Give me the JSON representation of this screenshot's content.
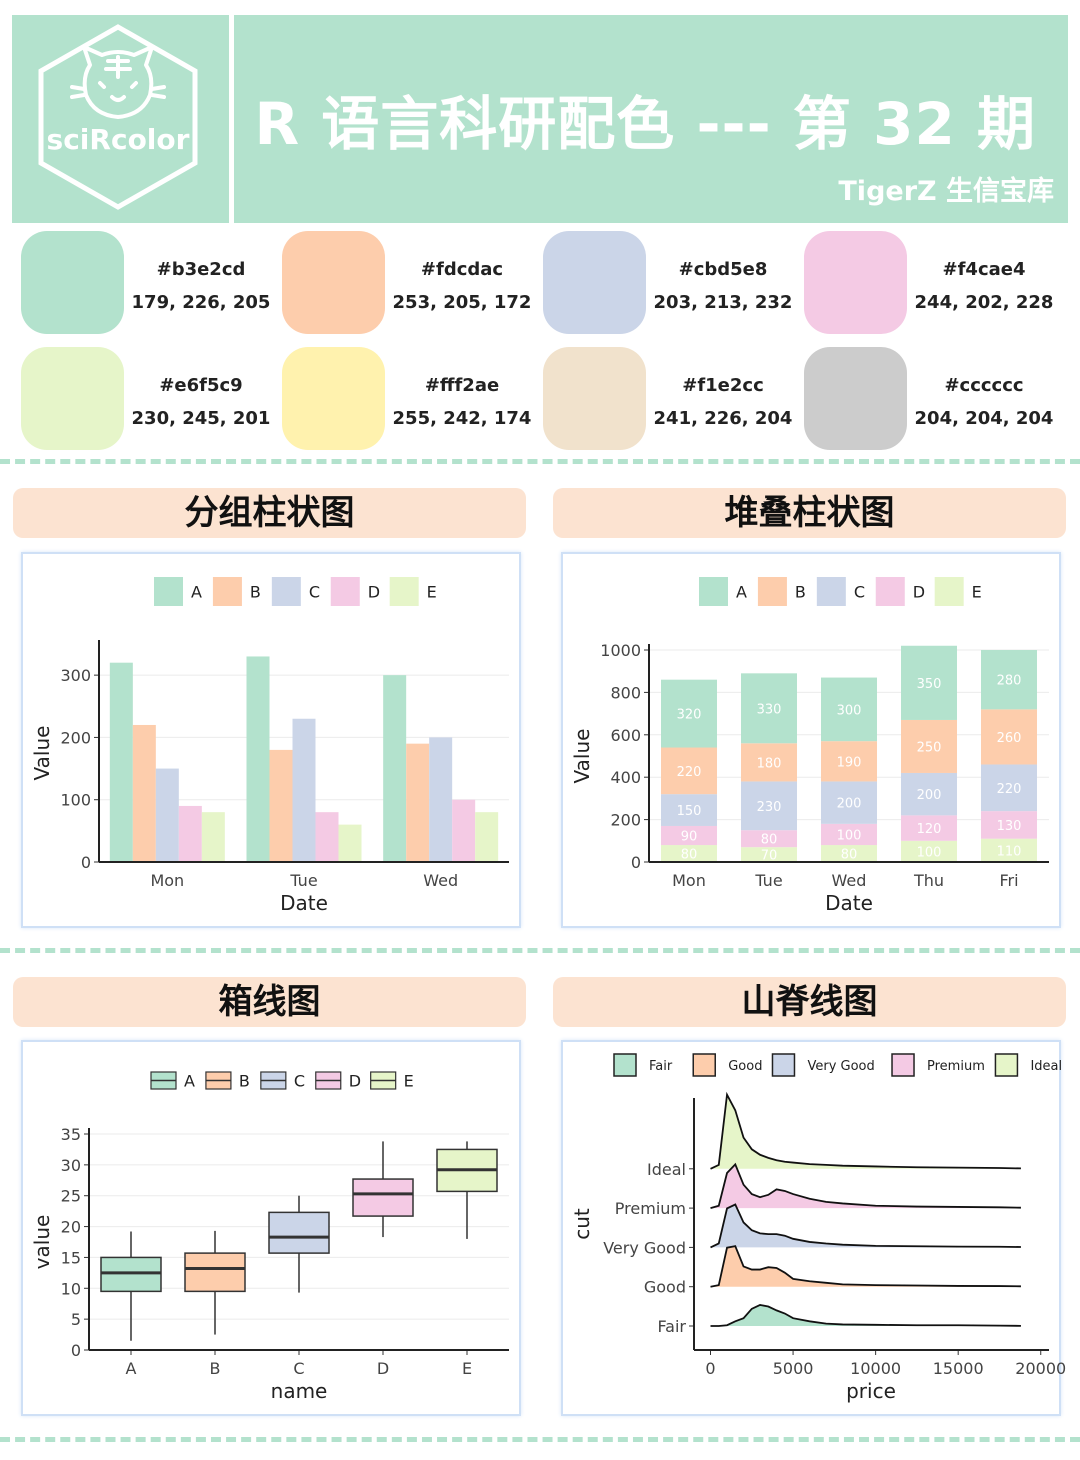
{
  "header": {
    "logo_text": "sciRcolor",
    "title": "R 语言科研配色 --- 第 32 期",
    "subtitle": "TigerZ 生信宝库"
  },
  "palette": [
    {
      "hex": "#b3e2cd",
      "rgb": "179, 226, 205"
    },
    {
      "hex": "#fdcdac",
      "rgb": "253, 205, 172"
    },
    {
      "hex": "#cbd5e8",
      "rgb": "203, 213, 232"
    },
    {
      "hex": "#f4cae4",
      "rgb": "244, 202, 228"
    },
    {
      "hex": "#e6f5c9",
      "rgb": "230, 245, 201"
    },
    {
      "hex": "#fff2ae",
      "rgb": "255, 242, 174"
    },
    {
      "hex": "#f1e2cc",
      "rgb": "241, 226, 204"
    },
    {
      "hex": "#cccccc",
      "rgb": "204, 204, 204"
    }
  ],
  "panels": {
    "grouped_bar_title": "分组柱状图",
    "stacked_bar_title": "堆叠柱状图",
    "boxplot_title": "箱线图",
    "ridgeline_title": "山脊线图"
  },
  "chart_data": [
    {
      "type": "bar",
      "subtype": "grouped",
      "categories": [
        "Mon",
        "Tue",
        "Wed"
      ],
      "series": [
        {
          "name": "A",
          "values": [
            320,
            330,
            300
          ]
        },
        {
          "name": "B",
          "values": [
            220,
            180,
            190
          ]
        },
        {
          "name": "C",
          "values": [
            150,
            230,
            200
          ]
        },
        {
          "name": "D",
          "values": [
            90,
            80,
            100
          ]
        },
        {
          "name": "E",
          "values": [
            80,
            60,
            80
          ]
        }
      ],
      "colors": [
        "#b3e2cd",
        "#fdcdac",
        "#cbd5e8",
        "#f4cae4",
        "#e6f5c9"
      ],
      "xlabel": "Date",
      "ylabel": "Value",
      "ylim": [
        0,
        350
      ],
      "yticks": [
        0,
        100,
        200,
        300
      ],
      "legend": "top",
      "grid": true
    },
    {
      "type": "bar",
      "subtype": "stacked",
      "categories": [
        "Mon",
        "Tue",
        "Wed",
        "Thu",
        "Fri"
      ],
      "series": [
        {
          "name": "A",
          "values": [
            320,
            330,
            300,
            350,
            280
          ]
        },
        {
          "name": "B",
          "values": [
            220,
            180,
            190,
            250,
            260
          ]
        },
        {
          "name": "C",
          "values": [
            150,
            230,
            200,
            200,
            220
          ]
        },
        {
          "name": "D",
          "values": [
            90,
            80,
            100,
            120,
            130
          ]
        },
        {
          "name": "E",
          "values": [
            80,
            70,
            80,
            100,
            110
          ]
        }
      ],
      "colors": [
        "#b3e2cd",
        "#fdcdac",
        "#cbd5e8",
        "#f4cae4",
        "#e6f5c9"
      ],
      "xlabel": "Date",
      "ylabel": "Value",
      "ylim": [
        0,
        1000
      ],
      "yticks": [
        0,
        200,
        400,
        600,
        800,
        1000
      ],
      "legend": "top",
      "grid": true,
      "data_labels": true
    },
    {
      "type": "boxplot",
      "categories": [
        "A",
        "B",
        "C",
        "D",
        "E"
      ],
      "boxes": [
        {
          "name": "A",
          "min": 1.5,
          "q1": 9.5,
          "median": 12.5,
          "q3": 15,
          "max": 19.2
        },
        {
          "name": "B",
          "min": 2.5,
          "q1": 9.5,
          "median": 13.2,
          "q3": 15.7,
          "max": 19.3
        },
        {
          "name": "C",
          "min": 9.3,
          "q1": 15.7,
          "median": 18.3,
          "q3": 22.3,
          "max": 25
        },
        {
          "name": "D",
          "min": 18.3,
          "q1": 21.7,
          "median": 25.3,
          "q3": 27.7,
          "max": 33.8
        },
        {
          "name": "E",
          "min": 18,
          "q1": 25.7,
          "median": 29.2,
          "q3": 32.5,
          "max": 33.8
        }
      ],
      "colors": [
        "#b3e2cd",
        "#fdcdac",
        "#cbd5e8",
        "#f4cae4",
        "#e6f5c9"
      ],
      "xlabel": "name",
      "ylabel": "value",
      "ylim": [
        0,
        35
      ],
      "yticks": [
        0,
        5,
        10,
        15,
        20,
        25,
        30,
        35
      ],
      "legend": "top",
      "grid": true
    },
    {
      "type": "area",
      "subtype": "ridgeline",
      "categories": [
        "Fair",
        "Good",
        "Very Good",
        "Premium",
        "Ideal"
      ],
      "x": [
        0,
        500,
        1000,
        1500,
        2000,
        2500,
        3000,
        3500,
        4000,
        4500,
        5000,
        6000,
        7000,
        8000,
        10000,
        12500,
        15000,
        17500,
        18800
      ],
      "series": [
        {
          "name": "Fair",
          "values": [
            0,
            0,
            0.01,
            0.06,
            0.1,
            0.22,
            0.27,
            0.25,
            0.2,
            0.16,
            0.1,
            0.06,
            0.03,
            0.02,
            0.015,
            0.01,
            0.01,
            0.005,
            0.002
          ]
        },
        {
          "name": "Good",
          "values": [
            0,
            0.02,
            0.5,
            0.52,
            0.26,
            0.22,
            0.22,
            0.25,
            0.24,
            0.18,
            0.1,
            0.07,
            0.05,
            0.03,
            0.02,
            0.015,
            0.01,
            0.008,
            0.005
          ]
        },
        {
          "name": "Very Good",
          "values": [
            0,
            0.05,
            0.5,
            0.55,
            0.32,
            0.22,
            0.18,
            0.17,
            0.17,
            0.15,
            0.11,
            0.07,
            0.05,
            0.035,
            0.02,
            0.015,
            0.01,
            0.008,
            0.005
          ]
        },
        {
          "name": "Premium",
          "values": [
            0,
            0.03,
            0.45,
            0.56,
            0.3,
            0.18,
            0.14,
            0.17,
            0.24,
            0.22,
            0.18,
            0.12,
            0.08,
            0.06,
            0.03,
            0.02,
            0.015,
            0.01,
            0.005
          ]
        },
        {
          "name": "Ideal",
          "values": [
            0,
            0.05,
            0.95,
            0.75,
            0.4,
            0.25,
            0.18,
            0.14,
            0.11,
            0.09,
            0.08,
            0.06,
            0.05,
            0.04,
            0.03,
            0.02,
            0.015,
            0.01,
            0.005
          ]
        }
      ],
      "colors": [
        "#b3e2cd",
        "#fdcdac",
        "#cbd5e8",
        "#f4cae4",
        "#e6f5c9"
      ],
      "xlabel": "price",
      "ylabel": "cut",
      "xlim": [
        -1000,
        20500
      ],
      "xticks": [
        0,
        5000,
        10000,
        15000,
        20000
      ],
      "legend": "top",
      "grid": false
    }
  ]
}
